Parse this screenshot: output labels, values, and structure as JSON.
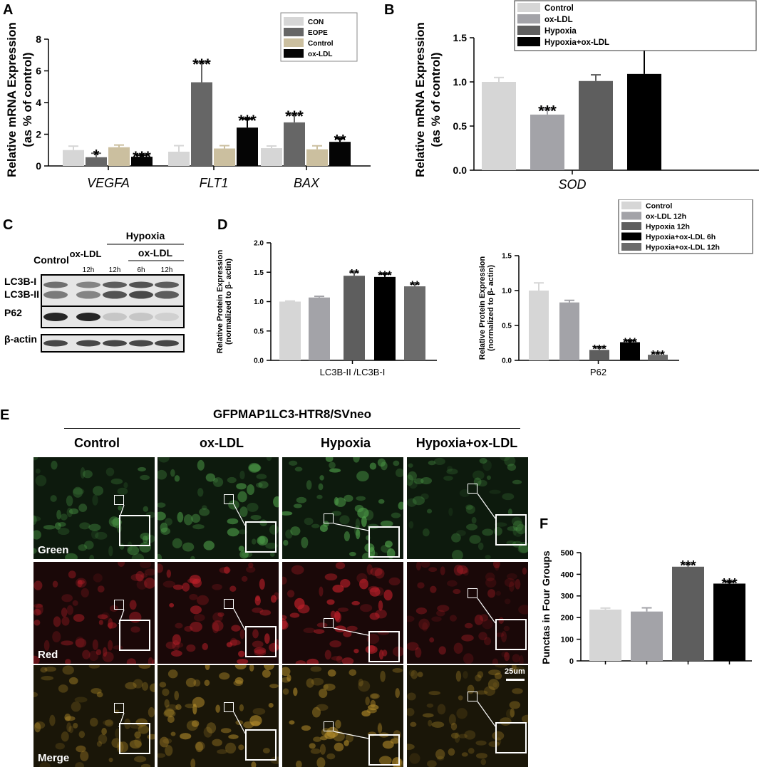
{
  "panels": {
    "A": {
      "letter": "A",
      "chart_data": {
        "type": "bar",
        "ylabel": "Relative mRNA Expression (as % of control)",
        "ylim": [
          0,
          8
        ],
        "yticks": [
          0,
          2,
          4,
          6,
          8
        ],
        "categories": [
          "VEGFA",
          "FLT1",
          "BAX"
        ],
        "series": [
          {
            "name": "CON",
            "color": "#d6d6d6",
            "values": [
              1.0,
              0.9,
              1.12
            ],
            "errors": [
              0.25,
              0.38,
              0.14
            ]
          },
          {
            "name": "EOPE",
            "color": "#666666",
            "values": [
              0.55,
              5.28,
              2.75
            ],
            "errors": [
              0.25,
              1.25,
              0.5
            ]
          },
          {
            "name": "Control",
            "color": "#cbbf9f",
            "values": [
              1.18,
              1.1,
              1.05
            ],
            "errors": [
              0.14,
              0.18,
              0.22
            ]
          },
          {
            "name": "ox-LDL",
            "color": "#050505",
            "values": [
              0.58,
              2.42,
              1.52
            ],
            "errors": [
              0.1,
              0.55,
              0.22
            ]
          }
        ],
        "significance": [
          [
            "",
            "*",
            "",
            "***"
          ],
          [
            "",
            "***",
            "",
            "***"
          ],
          [
            "",
            "***",
            "",
            "**"
          ]
        ]
      }
    },
    "B": {
      "letter": "B",
      "chart_data": {
        "type": "bar",
        "ylabel": "Relative mRNA Expression (as % of control)",
        "ylim": [
          0,
          1.5
        ],
        "yticks": [
          "0.0",
          "0.5",
          "1.0",
          "1.5"
        ],
        "categories": [
          "SOD"
        ],
        "series": [
          {
            "name": "Control",
            "color": "#d6d6d6",
            "values": [
              1.0
            ],
            "errors": [
              0.05
            ]
          },
          {
            "name": "ox-LDL",
            "color": "#a3a3a8",
            "values": [
              0.63
            ],
            "errors": [
              0.06
            ]
          },
          {
            "name": "Hypoxia",
            "color": "#5e5e5e",
            "values": [
              1.01
            ],
            "errors": [
              0.07
            ]
          },
          {
            "name": "Hypoxia+ox-LDL",
            "color": "#000000",
            "values": [
              1.09
            ],
            "errors": [
              0.27
            ]
          }
        ],
        "significance": [
          [
            "",
            "***",
            "",
            ""
          ]
        ]
      }
    },
    "C": {
      "letter": "C",
      "header_hypoxia": "Hypoxia",
      "header_oxldl_left": "ox-LDL",
      "header_oxldl_right": "ox-LDL",
      "header_control": "Control",
      "lane_times": [
        "12h",
        "12h",
        "6h",
        "12h"
      ],
      "bands": [
        "LC3B-I",
        "LC3B-II",
        "P62",
        "β-actin"
      ]
    },
    "D": {
      "letter": "D",
      "legend": [
        "Control",
        "ox-LDL 12h",
        "Hypoxia 12h",
        "Hypoxia+ox-LDL 6h",
        "Hypoxia+ox-LDL 12h"
      ],
      "colors": [
        "#d6d6d6",
        "#a3a3a8",
        "#5e5e5e",
        "#000000",
        "#6b6b6b"
      ],
      "chart_data": [
        {
          "type": "bar",
          "ylabel": "Relative Protein Expression (normalized to β- actin)",
          "xlabel": "LC3B-II /LC3B-I",
          "ylim": [
            0,
            2.0
          ],
          "yticks": [
            "0.0",
            "0.5",
            "1.0",
            "1.5",
            "2.0"
          ],
          "values": [
            1.0,
            1.07,
            1.44,
            1.42,
            1.26
          ],
          "errors": [
            0.01,
            0.02,
            0.06,
            0.05,
            0.04
          ],
          "significance": [
            "",
            "",
            "**",
            "***",
            "**"
          ]
        },
        {
          "type": "bar",
          "ylabel": "Relative Protein Expression (normalized to β- actin)",
          "xlabel": "P62",
          "ylim": [
            0,
            1.5
          ],
          "yticks": [
            "0.0",
            "0.5",
            "1.0",
            "1.5"
          ],
          "values": [
            1.0,
            0.83,
            0.15,
            0.26,
            0.08
          ],
          "errors": [
            0.11,
            0.03,
            0.03,
            0.02,
            0.02
          ],
          "significance": [
            "",
            "",
            "***",
            "***",
            "***"
          ]
        }
      ]
    },
    "E": {
      "letter": "E",
      "title": "GFPMAP1LC3-HTR8/SVneo",
      "columns": [
        "Control",
        "ox-LDL",
        "Hypoxia",
        "Hypoxia+ox-LDL"
      ],
      "rows": [
        "Green",
        "Red",
        "Merge"
      ],
      "scale_bar": "25um"
    },
    "F": {
      "letter": "F",
      "chart_data": {
        "type": "bar",
        "ylabel": "Punctas in Four Groups",
        "ylim": [
          0,
          500
        ],
        "yticks": [
          0,
          100,
          200,
          300,
          400,
          500
        ],
        "values": [
          237,
          228,
          435,
          357
        ],
        "errors": [
          7,
          17,
          12,
          8
        ],
        "colors": [
          "#d6d6d6",
          "#a3a3a8",
          "#5e5e5e",
          "#000000"
        ],
        "significance": [
          "",
          "",
          "***",
          "***"
        ]
      }
    }
  }
}
